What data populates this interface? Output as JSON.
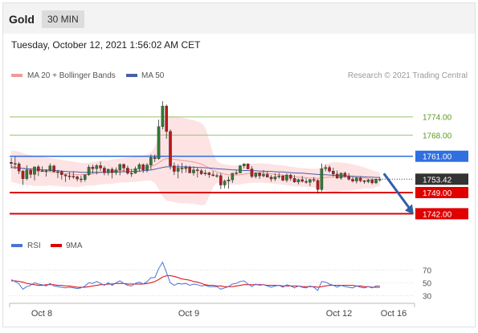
{
  "header": {
    "symbol": "Gold",
    "interval": "30 MIN"
  },
  "timestamp": "Tuesday, October 12, 2021 1:56:02 AM CET",
  "legend": {
    "bollinger": "MA 20 + Bollinger Bands",
    "ma50": "MA 50",
    "credit": "Research © 2021 Trading Central"
  },
  "rsi_legend": {
    "rsi": "RSI",
    "ma9": "9MA"
  },
  "colors": {
    "up": "#2e7d32",
    "down": "#b71c1c",
    "bollinger_fill": "#fde3e3",
    "ma20": "#ef9a9a",
    "ma50": "#4a5fa8",
    "resistance": "#2f6fe0",
    "support": "#e00000",
    "target_line": "#9bc46b",
    "target_text": "#5b9a1b",
    "price_box": "#333333",
    "arrow": "#2f5fa8",
    "rsi": "#4a73d9",
    "ma9": "#e00000"
  },
  "chart_data": {
    "type": "candlestick",
    "ylim": [
      1736,
      1784
    ],
    "x_ticks": [
      "Oct 8",
      "Oct 9",
      "Oct 12",
      "Oct 16"
    ],
    "levels": [
      {
        "value": 1774.0,
        "label": "1774.00",
        "kind": "target"
      },
      {
        "value": 1768.0,
        "label": "1768.00",
        "kind": "target"
      },
      {
        "value": 1761.0,
        "label": "1761.00",
        "kind": "resistance"
      },
      {
        "value": 1749.0,
        "label": "1749.00",
        "kind": "support"
      },
      {
        "value": 1742.0,
        "label": "1742.00",
        "kind": "support"
      }
    ],
    "last_price": {
      "value": 1753.42,
      "label": "1753.42"
    },
    "forecast_arrow": {
      "from": 1755.3,
      "to": 1742.0
    },
    "candles": [
      [
        1759.0,
        1760.5,
        1757.0,
        1758.6
      ],
      [
        1758.6,
        1760.8,
        1756.8,
        1758.5
      ],
      [
        1758.5,
        1759.1,
        1755.1,
        1756.1
      ],
      [
        1756.1,
        1756.5,
        1751.5,
        1753.6
      ],
      [
        1753.6,
        1758.0,
        1753.1,
        1756.4
      ],
      [
        1756.4,
        1757.0,
        1753.8,
        1755.0
      ],
      [
        1755.0,
        1757.5,
        1753.0,
        1757.5
      ],
      [
        1757.5,
        1758.1,
        1754.5,
        1756.2
      ],
      [
        1756.2,
        1757.7,
        1755.9,
        1756.0
      ],
      [
        1756.0,
        1756.7,
        1754.3,
        1756.2
      ],
      [
        1756.2,
        1758.6,
        1756.0,
        1757.8
      ],
      [
        1757.8,
        1758.2,
        1755.6,
        1755.9
      ],
      [
        1755.9,
        1756.5,
        1753.8,
        1755.9
      ],
      [
        1755.9,
        1756.3,
        1753.3,
        1754.9
      ],
      [
        1754.9,
        1755.2,
        1752.5,
        1754.5
      ],
      [
        1754.5,
        1755.8,
        1753.2,
        1754.4
      ],
      [
        1754.4,
        1756.0,
        1753.5,
        1754.2
      ],
      [
        1754.2,
        1754.6,
        1752.7,
        1753.5
      ],
      [
        1753.5,
        1754.6,
        1752.3,
        1753.3
      ],
      [
        1753.3,
        1754.9,
        1752.6,
        1754.9
      ],
      [
        1754.9,
        1758.1,
        1754.5,
        1757.4
      ],
      [
        1757.4,
        1758.2,
        1755.3,
        1756.9
      ],
      [
        1756.9,
        1758.4,
        1755.0,
        1757.9
      ],
      [
        1757.9,
        1759.2,
        1756.1,
        1757.1
      ],
      [
        1757.1,
        1757.8,
        1754.7,
        1755.6
      ],
      [
        1755.6,
        1756.9,
        1754.7,
        1756.7
      ],
      [
        1756.7,
        1757.3,
        1753.7,
        1755.6
      ],
      [
        1755.6,
        1757.3,
        1754.8,
        1756.5
      ],
      [
        1756.5,
        1758.6,
        1754.7,
        1758.3
      ],
      [
        1758.3,
        1758.6,
        1755.9,
        1757.1
      ],
      [
        1757.1,
        1757.9,
        1754.9,
        1755.4
      ],
      [
        1755.4,
        1756.8,
        1754.2,
        1755.4
      ],
      [
        1755.4,
        1757.6,
        1755.2,
        1756.9
      ],
      [
        1756.9,
        1758.8,
        1755.8,
        1758.2
      ],
      [
        1758.2,
        1758.6,
        1755.5,
        1756.5
      ],
      [
        1756.5,
        1758.7,
        1755.7,
        1758.1
      ],
      [
        1758.1,
        1761.6,
        1756.6,
        1760.6
      ],
      [
        1760.6,
        1761.6,
        1759.1,
        1760.2
      ],
      [
        1760.2,
        1773.1,
        1759.8,
        1770.8
      ],
      [
        1770.8,
        1779.2,
        1769.9,
        1777.6
      ],
      [
        1777.6,
        1778.1,
        1766.8,
        1769.2
      ],
      [
        1769.2,
        1769.9,
        1756.6,
        1757.8
      ],
      [
        1757.8,
        1758.9,
        1754.8,
        1756.0
      ],
      [
        1756.0,
        1758.3,
        1753.7,
        1757.1
      ],
      [
        1757.1,
        1758.8,
        1755.4,
        1756.9
      ],
      [
        1756.9,
        1758.0,
        1755.6,
        1757.4
      ],
      [
        1757.4,
        1757.9,
        1755.4,
        1755.5
      ],
      [
        1755.5,
        1757.6,
        1754.6,
        1756.5
      ],
      [
        1756.5,
        1757.3,
        1754.0,
        1756.2
      ],
      [
        1756.2,
        1756.8,
        1754.8,
        1755.2
      ],
      [
        1755.2,
        1756.5,
        1754.6,
        1755.5
      ],
      [
        1755.5,
        1755.9,
        1753.9,
        1754.9
      ],
      [
        1754.9,
        1756.1,
        1754.3,
        1754.6
      ],
      [
        1754.6,
        1755.4,
        1753.9,
        1754.6
      ],
      [
        1754.6,
        1755.5,
        1750.2,
        1751.5
      ],
      [
        1751.5,
        1753.3,
        1750.4,
        1752.8
      ],
      [
        1752.8,
        1754.3,
        1750.3,
        1753.2
      ],
      [
        1753.2,
        1755.4,
        1752.2,
        1755.4
      ],
      [
        1755.4,
        1756.4,
        1754.9,
        1755.5
      ],
      [
        1755.5,
        1758.2,
        1755.4,
        1757.8
      ],
      [
        1757.8,
        1758.6,
        1757.0,
        1758.5
      ],
      [
        1758.5,
        1758.6,
        1756.7,
        1756.8
      ],
      [
        1756.8,
        1757.7,
        1753.8,
        1754.3
      ],
      [
        1754.3,
        1755.6,
        1753.7,
        1755.5
      ],
      [
        1755.5,
        1755.7,
        1753.5,
        1754.5
      ],
      [
        1754.5,
        1756.4,
        1754.0,
        1755.0
      ],
      [
        1755.0,
        1756.0,
        1754.0,
        1754.1
      ],
      [
        1754.1,
        1754.8,
        1752.6,
        1753.5
      ],
      [
        1753.5,
        1755.4,
        1752.8,
        1754.2
      ],
      [
        1754.2,
        1755.5,
        1753.6,
        1754.5
      ],
      [
        1754.5,
        1754.8,
        1752.7,
        1753.1
      ],
      [
        1753.1,
        1755.3,
        1752.4,
        1754.8
      ],
      [
        1754.8,
        1755.2,
        1752.9,
        1753.7
      ],
      [
        1753.7,
        1754.8,
        1752.2,
        1752.5
      ],
      [
        1752.5,
        1753.6,
        1751.7,
        1753.3
      ],
      [
        1753.3,
        1754.5,
        1752.3,
        1752.7
      ],
      [
        1752.7,
        1753.7,
        1751.9,
        1752.4
      ],
      [
        1752.4,
        1753.5,
        1751.1,
        1753.3
      ],
      [
        1753.3,
        1754.1,
        1752.4,
        1753.0
      ],
      [
        1753.0,
        1753.4,
        1748.7,
        1750.0
      ],
      [
        1750.0,
        1758.6,
        1749.4,
        1756.9
      ],
      [
        1756.9,
        1758.2,
        1756.0,
        1757.3
      ],
      [
        1757.3,
        1758.0,
        1755.6,
        1756.1
      ],
      [
        1756.1,
        1757.2,
        1754.3,
        1755.1
      ],
      [
        1755.1,
        1756.3,
        1753.5,
        1753.8
      ],
      [
        1753.8,
        1755.6,
        1753.2,
        1755.4
      ],
      [
        1755.4,
        1755.9,
        1753.9,
        1754.3
      ],
      [
        1754.3,
        1755.4,
        1753.0,
        1753.4
      ],
      [
        1753.4,
        1754.2,
        1752.3,
        1752.8
      ],
      [
        1752.8,
        1754.1,
        1752.0,
        1753.8
      ],
      [
        1753.8,
        1754.3,
        1752.4,
        1752.9
      ],
      [
        1752.9,
        1753.2,
        1751.9,
        1752.6
      ],
      [
        1752.6,
        1753.5,
        1752.1,
        1753.2
      ],
      [
        1753.2,
        1753.7,
        1751.7,
        1752.2
      ],
      [
        1752.2,
        1753.6,
        1751.8,
        1753.4
      ],
      [
        1753.4,
        1754.1,
        1752.6,
        1753.4
      ]
    ],
    "ma20": [
      1757.8,
      1757.5,
      1757.2,
      1756.9,
      1756.6,
      1756.4,
      1756.2,
      1756.1,
      1756.0,
      1755.9,
      1755.9,
      1755.7,
      1755.6,
      1755.4,
      1755.3,
      1755.2,
      1755.0,
      1754.9,
      1754.9,
      1755.0,
      1755.1,
      1755.2,
      1755.4,
      1755.6,
      1755.7,
      1755.8,
      1755.9,
      1756.1,
      1756.3,
      1756.4,
      1756.5,
      1756.6,
      1756.7,
      1756.9,
      1757.1,
      1757.3,
      1757.6,
      1758.1,
      1758.8,
      1759.8,
      1760.2,
      1760.2,
      1760.0,
      1759.8,
      1759.6,
      1759.5,
      1759.3,
      1759.1,
      1758.8,
      1758.4,
      1757.8,
      1757.1,
      1756.4,
      1755.8,
      1755.4,
      1755.1,
      1754.9,
      1754.8,
      1754.8,
      1754.9,
      1755.1,
      1755.3,
      1755.4,
      1755.5,
      1755.5,
      1755.4,
      1755.3,
      1755.2,
      1755.0,
      1754.9,
      1754.8,
      1754.6,
      1754.4,
      1754.2,
      1754.1,
      1754.0,
      1753.9,
      1753.8,
      1753.8,
      1753.7,
      1753.8,
      1754.0,
      1754.1,
      1754.1,
      1754.1,
      1754.2,
      1754.2,
      1754.1,
      1754.0,
      1754.0,
      1753.9,
      1753.8,
      1753.6,
      1753.4,
      1753.4,
      1753.4
    ],
    "bb_upper": [
      1763.0,
      1762.8,
      1762.5,
      1762.1,
      1761.7,
      1761.4,
      1761.2,
      1761.0,
      1760.8,
      1760.6,
      1760.4,
      1760.2,
      1760.0,
      1759.8,
      1759.6,
      1759.4,
      1759.2,
      1759.0,
      1758.8,
      1758.8,
      1758.9,
      1759.1,
      1759.3,
      1759.5,
      1759.6,
      1759.7,
      1759.9,
      1760.1,
      1760.3,
      1760.4,
      1760.6,
      1760.7,
      1760.9,
      1761.1,
      1761.3,
      1761.6,
      1762.3,
      1764.0,
      1767.5,
      1772.0,
      1774.0,
      1774.3,
      1774.2,
      1774.0,
      1773.8,
      1773.5,
      1773.2,
      1772.9,
      1772.5,
      1772.0,
      1770.5,
      1766.5,
      1762.0,
      1759.4,
      1758.6,
      1758.3,
      1758.1,
      1758.0,
      1758.0,
      1758.1,
      1758.3,
      1758.5,
      1758.6,
      1758.7,
      1758.7,
      1758.6,
      1758.5,
      1758.4,
      1758.2,
      1758.1,
      1758.0,
      1757.8,
      1757.6,
      1757.4,
      1757.2,
      1757.1,
      1757.0,
      1756.9,
      1756.9,
      1756.9,
      1757.4,
      1758.4,
      1758.9,
      1759.0,
      1759.0,
      1758.9,
      1758.8,
      1758.6,
      1758.3,
      1758.0,
      1757.7,
      1757.3,
      1756.9,
      1756.4,
      1756.0,
      1755.6
    ],
    "bb_lower": [
      1752.6,
      1752.2,
      1751.9,
      1751.7,
      1751.5,
      1751.4,
      1751.2,
      1751.2,
      1751.2,
      1751.2,
      1751.4,
      1751.2,
      1751.2,
      1751.0,
      1751.0,
      1751.0,
      1750.8,
      1750.8,
      1751.0,
      1751.2,
      1751.3,
      1751.3,
      1751.5,
      1751.7,
      1751.8,
      1751.9,
      1751.9,
      1752.1,
      1752.3,
      1752.4,
      1752.4,
      1752.5,
      1752.5,
      1752.7,
      1752.9,
      1753.0,
      1752.9,
      1752.2,
      1750.1,
      1747.6,
      1746.4,
      1746.1,
      1745.8,
      1745.6,
      1745.4,
      1745.5,
      1745.4,
      1745.3,
      1745.1,
      1744.8,
      1745.1,
      1747.7,
      1750.8,
      1752.2,
      1752.2,
      1751.9,
      1751.7,
      1751.6,
      1751.6,
      1751.7,
      1751.9,
      1752.1,
      1752.2,
      1752.3,
      1752.3,
      1752.2,
      1752.1,
      1752.0,
      1751.8,
      1751.7,
      1751.6,
      1751.4,
      1751.2,
      1751.0,
      1751.0,
      1750.9,
      1750.8,
      1750.7,
      1750.7,
      1750.5,
      1750.2,
      1749.6,
      1749.3,
      1749.2,
      1749.2,
      1749.5,
      1749.6,
      1749.6,
      1749.7,
      1750.0,
      1750.1,
      1750.3,
      1750.3,
      1750.4,
      1750.8,
      1751.2
    ],
    "ma50": [
      1757.3,
      1757.2,
      1757.1,
      1757.0,
      1756.9,
      1756.8,
      1756.7,
      1756.6,
      1756.5,
      1756.5,
      1756.4,
      1756.3,
      1756.2,
      1756.1,
      1756.0,
      1755.9,
      1755.9,
      1755.8,
      1755.7,
      1755.7,
      1755.7,
      1755.7,
      1755.7,
      1755.7,
      1755.7,
      1755.7,
      1755.7,
      1755.8,
      1755.8,
      1755.9,
      1755.9,
      1756.0,
      1756.0,
      1756.1,
      1756.2,
      1756.3,
      1756.5,
      1756.7,
      1757.0,
      1757.3,
      1757.5,
      1757.5,
      1757.5,
      1757.5,
      1757.5,
      1757.5,
      1757.4,
      1757.4,
      1757.3,
      1757.3,
      1757.2,
      1757.1,
      1757.0,
      1756.9,
      1756.8,
      1756.7,
      1756.6,
      1756.5,
      1756.5,
      1756.4,
      1756.3,
      1756.3,
      1756.2,
      1756.2,
      1756.1,
      1756.1,
      1756.0,
      1756.0,
      1755.9,
      1755.8,
      1755.8,
      1755.7,
      1755.6,
      1755.5,
      1755.4,
      1755.4,
      1755.3,
      1755.2,
      1755.1,
      1755.0,
      1754.9,
      1754.9,
      1754.8,
      1754.7,
      1754.7,
      1754.6,
      1754.5,
      1754.5,
      1754.4,
      1754.3,
      1754.3,
      1754.2,
      1754.1,
      1754.1,
      1754.0,
      1754.0
    ],
    "rsi": {
      "ylim": [
        18,
        88
      ],
      "ticks": [
        {
          "value": 70,
          "label": "70"
        },
        {
          "value": 50,
          "label": "50"
        },
        {
          "value": 30,
          "label": "30"
        }
      ],
      "rsi": [
        55,
        52,
        48,
        40,
        44,
        46,
        50,
        48,
        47,
        45,
        49,
        45,
        44,
        43,
        42,
        43,
        42,
        41,
        42,
        45,
        50,
        49,
        52,
        49,
        46,
        50,
        46,
        50,
        53,
        49,
        46,
        45,
        49,
        51,
        48,
        52,
        58,
        58,
        72,
        82,
        66,
        50,
        46,
        49,
        48,
        49,
        46,
        48,
        47,
        45,
        46,
        44,
        44,
        44,
        40,
        42,
        44,
        48,
        49,
        52,
        53,
        48,
        44,
        48,
        46,
        47,
        45,
        43,
        45,
        46,
        43,
        47,
        45,
        42,
        45,
        43,
        42,
        45,
        43,
        38,
        52,
        51,
        48,
        46,
        43,
        46,
        44,
        43,
        42,
        45,
        43,
        42,
        44,
        42,
        45,
        45
      ],
      "ma9": [
        53,
        53,
        52,
        51,
        49,
        48,
        47,
        46,
        46,
        47,
        47,
        47,
        46,
        46,
        45,
        45,
        44,
        43,
        43,
        43,
        44,
        45,
        46,
        47,
        47,
        48,
        48,
        49,
        49,
        49,
        48,
        48,
        48,
        48,
        48,
        49,
        50,
        52,
        55,
        59,
        61,
        61,
        60,
        58,
        56,
        55,
        54,
        52,
        51,
        49,
        47,
        46,
        46,
        45,
        45,
        44,
        44,
        44,
        45,
        46,
        47,
        47,
        47,
        47,
        47,
        47,
        46,
        46,
        46,
        46,
        45,
        45,
        45,
        45,
        45,
        44,
        44,
        44,
        44,
        43,
        44,
        45,
        46,
        46,
        46,
        46,
        46,
        46,
        46,
        45,
        45,
        44,
        44,
        43,
        43,
        43
      ]
    }
  }
}
